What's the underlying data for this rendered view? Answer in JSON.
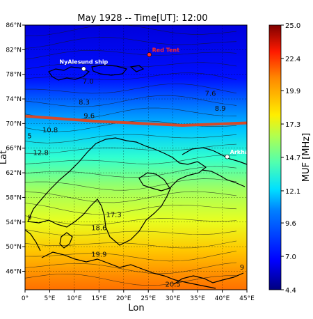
{
  "chart_data": {
    "type": "heatmap",
    "title": "May 1928 -- Time[UT]: 12:00",
    "xlabel": "Lon",
    "ylabel": "Lat",
    "x_ticks": [
      "0°",
      "5°E",
      "10°E",
      "15°E",
      "20°E",
      "25°E",
      "30°E",
      "35°E",
      "40°E",
      "45°E"
    ],
    "x_tick_values": [
      0,
      5,
      10,
      15,
      20,
      25,
      30,
      35,
      40,
      45
    ],
    "y_ticks": [
      "46°N",
      "50°N",
      "54°N",
      "58°N",
      "62°N",
      "66°N",
      "70°N",
      "74°N",
      "78°N",
      "82°N",
      "86°N"
    ],
    "y_tick_values": [
      46,
      50,
      54,
      58,
      62,
      66,
      70,
      74,
      78,
      82,
      86
    ],
    "xlim": [
      0,
      45
    ],
    "ylim": [
      43,
      86
    ],
    "grid": true,
    "colorbar": {
      "label": "MUF [MHz]",
      "range": [
        4.4,
        25.0
      ],
      "ticks": [
        "25.0",
        "22.4",
        "19.9",
        "17.3",
        "14.7",
        "12.1",
        "9.6",
        "7.0",
        "4.4"
      ],
      "tick_values": [
        25.0,
        22.4,
        19.9,
        17.3,
        14.7,
        12.1,
        9.6,
        7.0,
        4.4
      ]
    },
    "contour_levels": [
      {
        "text": "7.0",
        "lon": 12.8,
        "lat": 76.5
      },
      {
        "text": "8.3",
        "lon": 12.0,
        "lat": 73.1
      },
      {
        "text": "9.6",
        "lon": 13.0,
        "lat": 70.9
      },
      {
        "text": "7.6",
        "lon": 37.6,
        "lat": 74.5
      },
      {
        "text": "8.9",
        "lon": 39.6,
        "lat": 72.1
      },
      {
        "text": "5",
        "lon": 0.9,
        "lat": 67.6
      },
      {
        "text": "10.8",
        "lon": 5.1,
        "lat": 68.6
      },
      {
        "text": "12.8",
        "lon": 3.2,
        "lat": 64.9
      },
      {
        "text": "9",
        "lon": 0.9,
        "lat": 54.4
      },
      {
        "text": "17.3",
        "lon": 18.0,
        "lat": 54.8
      },
      {
        "text": "18.6",
        "lon": 15.0,
        "lat": 52.7
      },
      {
        "text": "19.9",
        "lon": 15.0,
        "lat": 48.4
      },
      {
        "text": "20.5",
        "lon": 30.0,
        "lat": 43.5
      },
      {
        "text": "9",
        "lon": 44.0,
        "lat": 46.3
      }
    ],
    "markers": [
      {
        "label": "NyAlesund ship",
        "lon": 11.9,
        "lat": 78.9,
        "color": "#ffffff"
      },
      {
        "label": "Red Tent",
        "lon": 25.2,
        "lat": 81.2,
        "color": "#ff2b2b"
      },
      {
        "label": "Arkhangelsk",
        "lon": 41.0,
        "lat": 64.6,
        "color": "#ffffff"
      }
    ],
    "path": {
      "color": "#d64a2a",
      "points": [
        [
          0,
          71.2
        ],
        [
          14,
          70.4
        ],
        [
          24,
          70.0
        ],
        [
          32,
          69.7
        ],
        [
          45,
          70.1
        ]
      ]
    },
    "colors": [
      "#00007f",
      "#0000ff",
      "#0080ff",
      "#00e0ff",
      "#50ffb0",
      "#b0ff50",
      "#ffee00",
      "#ff8800",
      "#ff1a00",
      "#7f0000"
    ]
  }
}
